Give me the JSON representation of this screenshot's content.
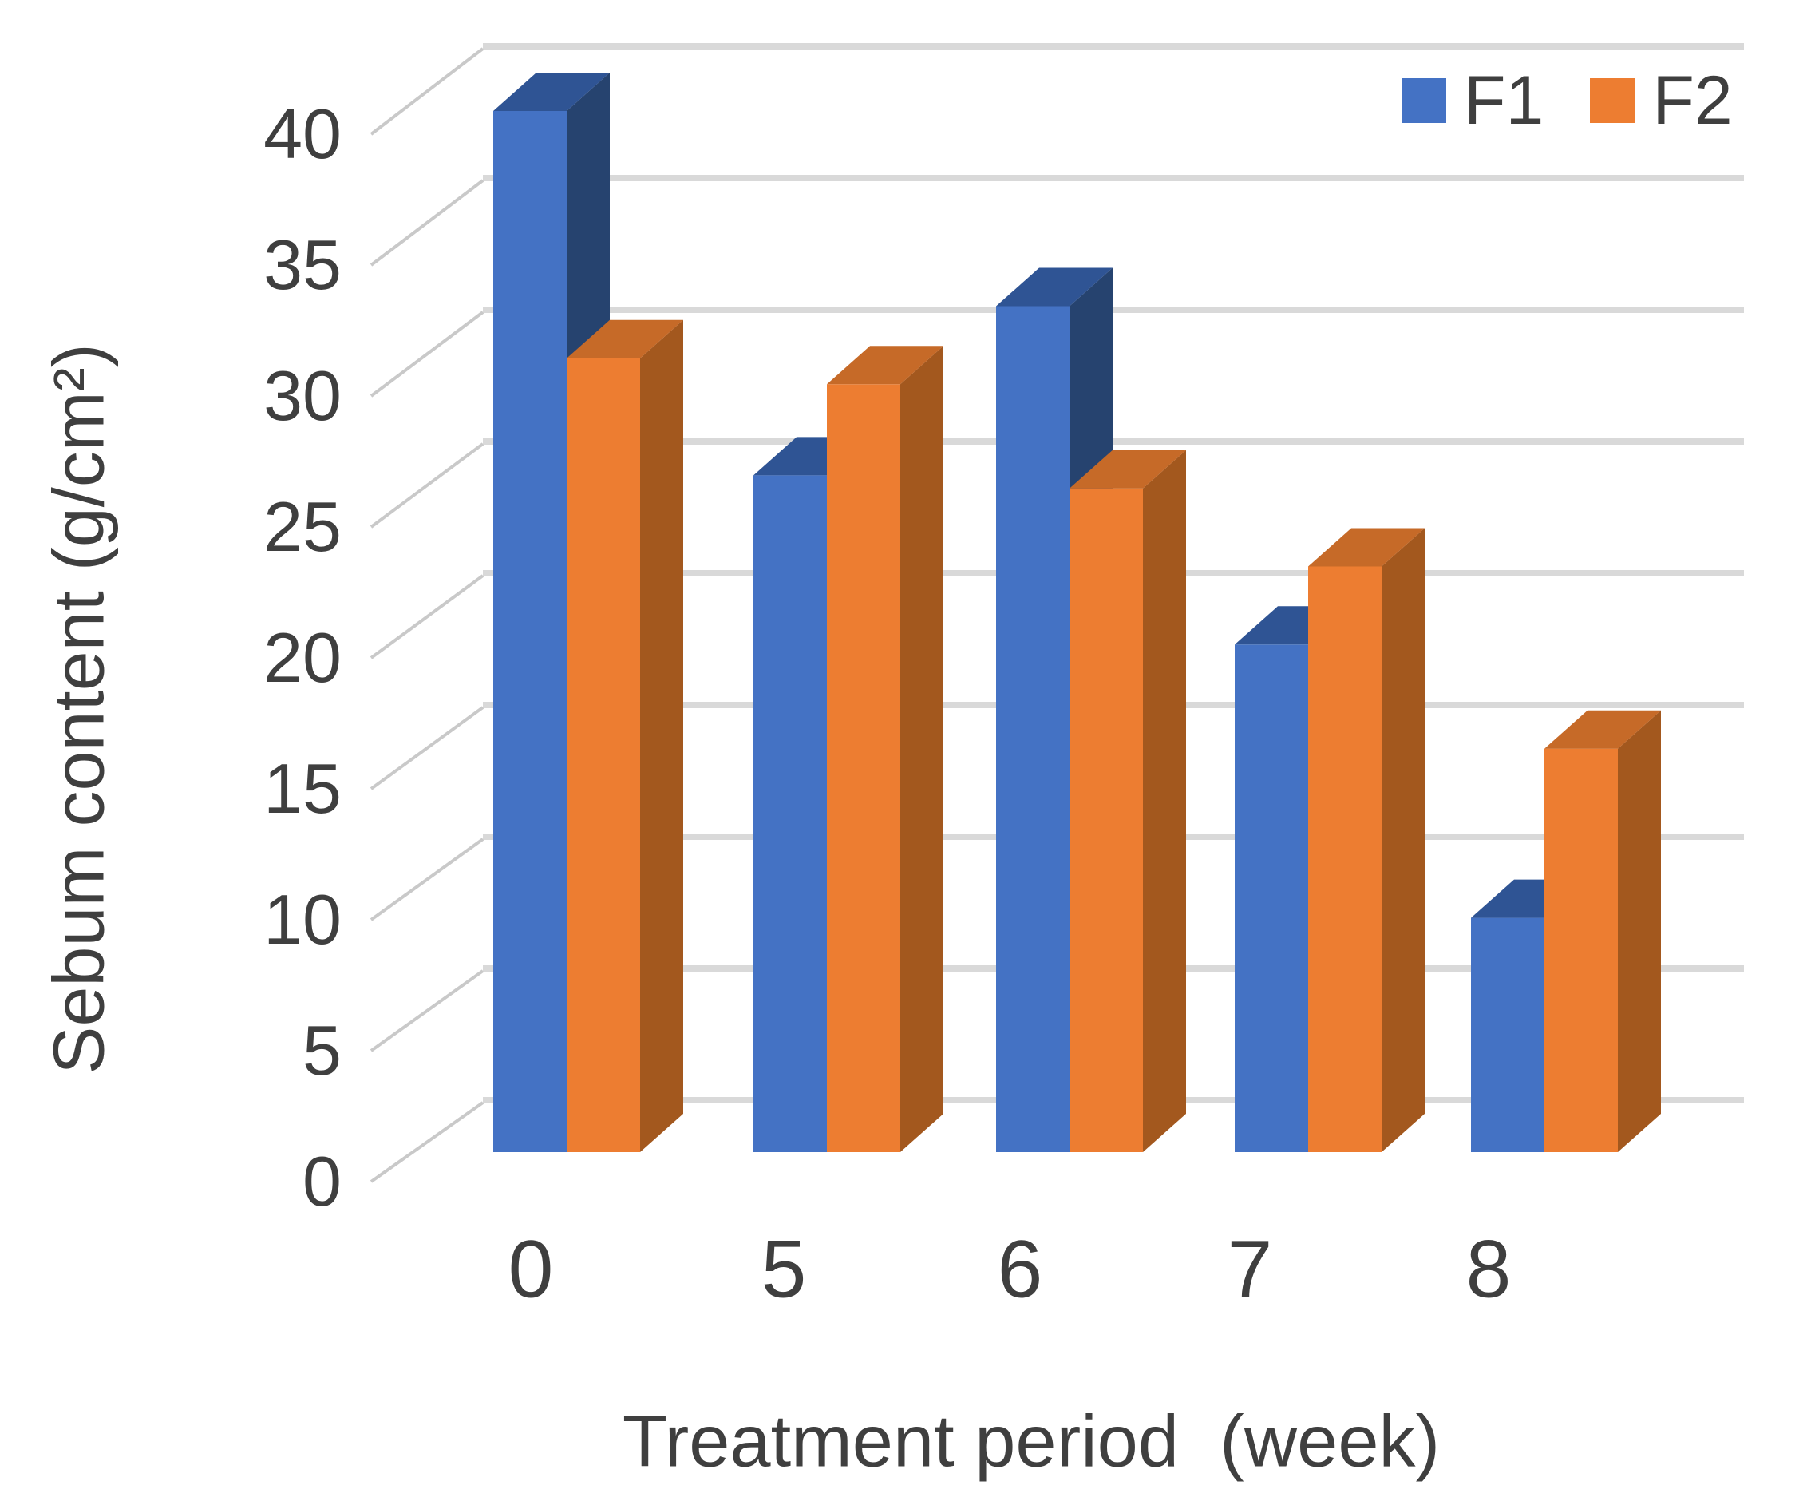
{
  "figure": {
    "background": "#FFFFFF"
  },
  "chart_data": {
    "type": "bar",
    "subtype": "3d-clustered-column",
    "title": "",
    "xlabel": "Treatment period  (week)",
    "ylabel": "Sebum content (g/cm²)",
    "categories": [
      "0",
      "5",
      "6",
      "7",
      "8"
    ],
    "series": [
      {
        "name": "F1",
        "values": [
          40,
          26,
          32.5,
          19.5,
          9
        ],
        "color": "#4472C4",
        "top_color": "#2F5494",
        "side_color": "#26436F"
      },
      {
        "name": "F2",
        "values": [
          30.5,
          29.5,
          25.5,
          22.5,
          15.5
        ],
        "color": "#ED7D31",
        "top_color": "#C66A28",
        "side_color": "#A3581E"
      }
    ],
    "y_ticks": [
      0,
      5,
      10,
      15,
      20,
      25,
      30,
      35,
      40
    ],
    "ylim": [
      0,
      40
    ],
    "grid": true,
    "gridline_color": "#D9D9D9",
    "depth_line_color": "#C9C9C9",
    "axis_text_color": "#3F3F3F",
    "legend_position": "top-right"
  }
}
